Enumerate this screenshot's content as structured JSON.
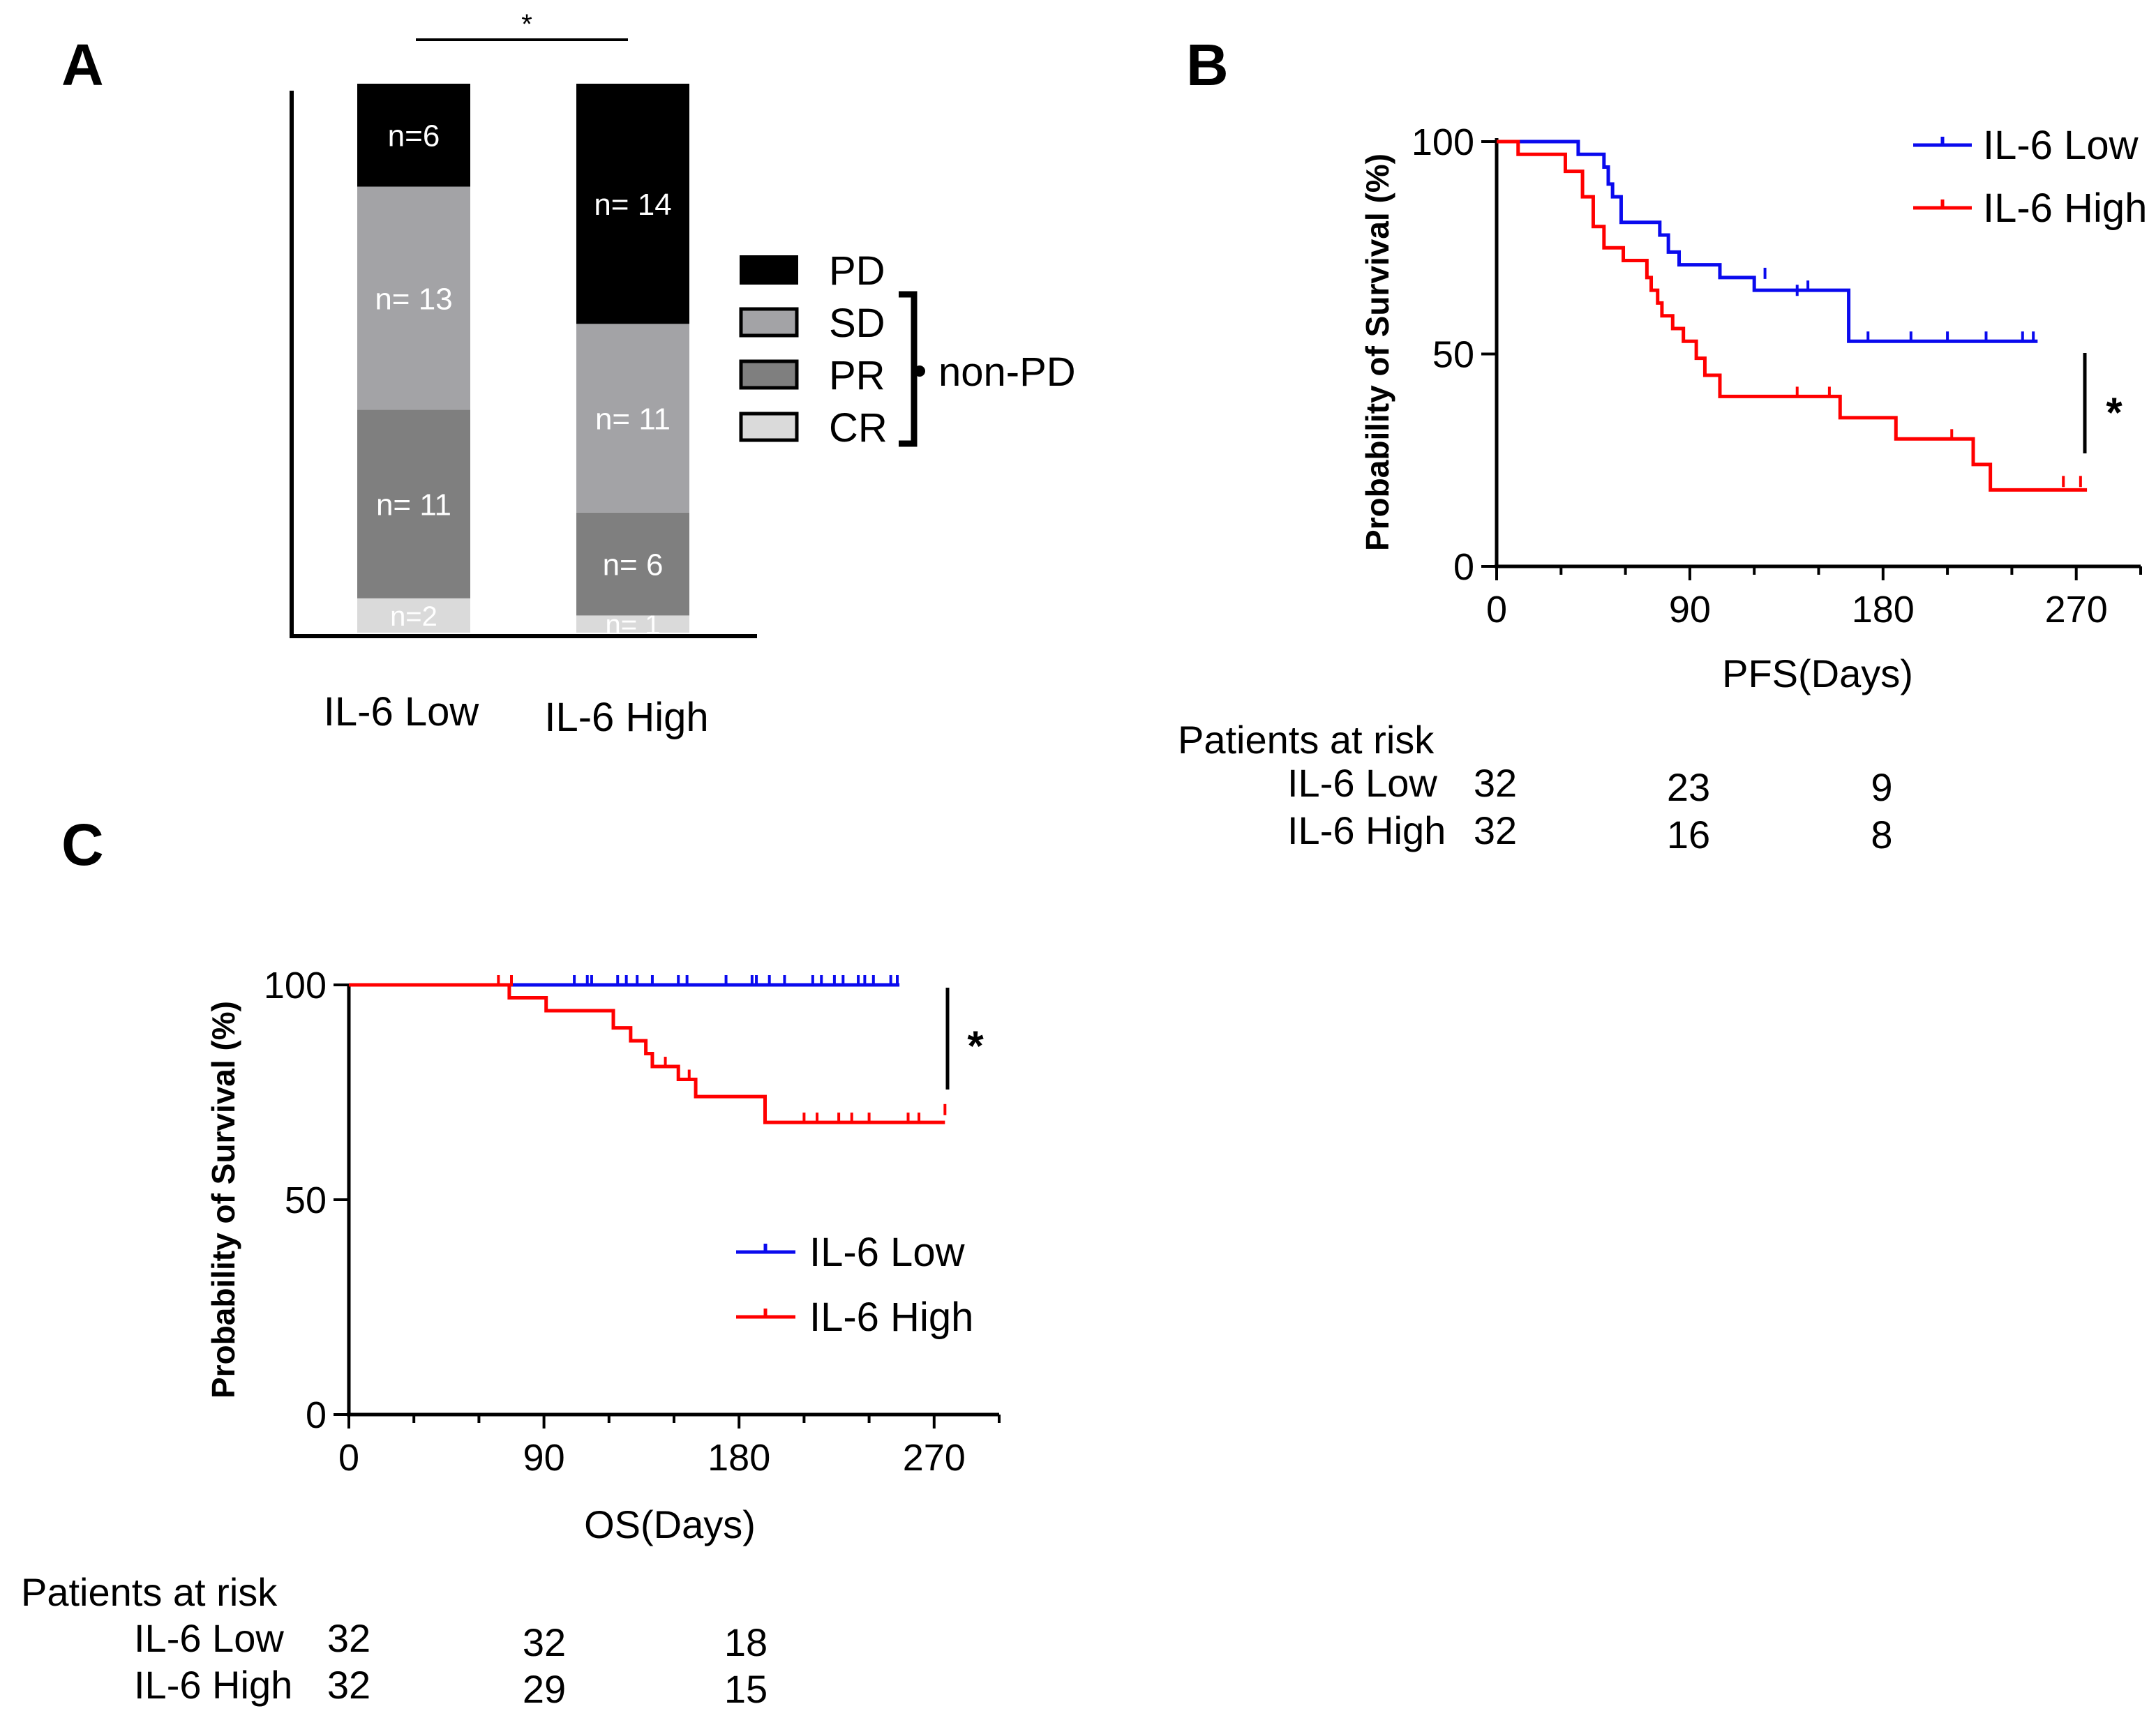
{
  "panels": {
    "a": "A",
    "b": "B",
    "c": "C"
  },
  "chart_data": [
    {
      "id": "A",
      "type": "bar",
      "stacked": true,
      "categories": [
        "IL-6 Low",
        "IL-6 High"
      ],
      "series": [
        {
          "name": "CR",
          "color": "#dadada",
          "values": [
            2,
            1
          ],
          "labels": [
            "n=2",
            "n= 1"
          ]
        },
        {
          "name": "PR",
          "color": "#7f7f7f",
          "values": [
            11,
            6
          ],
          "labels": [
            "n= 11",
            "n= 6"
          ]
        },
        {
          "name": "SD",
          "color": "#a3a3a6",
          "values": [
            13,
            11
          ],
          "labels": [
            "n= 13",
            "n= 11"
          ]
        },
        {
          "name": "PD",
          "color": "#000000",
          "values": [
            6,
            14
          ],
          "labels": [
            "n=6",
            "n= 14"
          ]
        }
      ],
      "ylim": [
        0,
        100
      ],
      "legend": [
        "PD",
        "SD",
        "PR",
        "CR"
      ],
      "legend_group": "non-PD",
      "significance": "*"
    },
    {
      "id": "B",
      "type": "line",
      "ylabel": "Probability of Survival (%)",
      "xlabel": "PFS(Days)",
      "xlim": [
        0,
        300
      ],
      "ylim": [
        0,
        100
      ],
      "xticks": [
        0,
        90,
        180,
        270
      ],
      "yticks": [
        0,
        50,
        100
      ],
      "significance": "*",
      "series": [
        {
          "name": "IL-6 Low",
          "color": "#0a0aee",
          "steps": [
            [
              0,
              100
            ],
            [
              38,
              97
            ],
            [
              50,
              94
            ],
            [
              52,
              90
            ],
            [
              54,
              87
            ],
            [
              58,
              81
            ],
            [
              76,
              78
            ],
            [
              80,
              74
            ],
            [
              85,
              71
            ],
            [
              104,
              68
            ],
            [
              120,
              65
            ],
            [
              164,
              53
            ],
            [
              252,
              53
            ]
          ],
          "censors": [
            [
              125,
              68
            ],
            [
              140,
              64
            ],
            [
              145,
              65
            ],
            [
              173,
              53
            ],
            [
              193,
              53
            ],
            [
              210,
              53
            ],
            [
              228,
              53
            ],
            [
              245,
              53
            ],
            [
              250,
              53
            ]
          ]
        },
        {
          "name": "IL-6 High",
          "color": "#ff0000",
          "steps": [
            [
              0,
              100
            ],
            [
              10,
              97
            ],
            [
              32,
              93
            ],
            [
              40,
              87
            ],
            [
              45,
              80
            ],
            [
              50,
              75
            ],
            [
              59,
              72
            ],
            [
              70,
              68
            ],
            [
              72,
              65
            ],
            [
              75,
              62
            ],
            [
              77,
              59
            ],
            [
              82,
              56
            ],
            [
              87,
              53
            ],
            [
              93,
              49
            ],
            [
              97,
              45
            ],
            [
              104,
              40
            ],
            [
              160,
              35
            ],
            [
              186,
              30
            ],
            [
              222,
              24
            ],
            [
              230,
              18
            ],
            [
              275,
              18
            ]
          ],
          "censors": [
            [
              140,
              40
            ],
            [
              155,
              40
            ],
            [
              212,
              30
            ],
            [
              264,
              19
            ],
            [
              272,
              19
            ]
          ]
        }
      ],
      "legend": [
        "IL-6 Low",
        "IL-6 High"
      ],
      "risk_table": {
        "title": "Patients at risk",
        "rows": [
          {
            "label": "IL-6 Low",
            "values": [
              "32",
              "23",
              "9"
            ]
          },
          {
            "label": "IL-6 High",
            "values": [
              "32",
              "16",
              "8"
            ]
          }
        ]
      }
    },
    {
      "id": "C",
      "type": "line",
      "ylabel": "Probability of Survival (%)",
      "xlabel": "OS(Days)",
      "xlim": [
        0,
        300
      ],
      "ylim": [
        0,
        100
      ],
      "xticks": [
        0,
        90,
        180,
        270
      ],
      "yticks": [
        0,
        50,
        100
      ],
      "significance": "*",
      "series": [
        {
          "name": "IL-6 Low",
          "color": "#0a0aee",
          "steps": [
            [
              0,
              100
            ],
            [
              254,
              100
            ]
          ],
          "censors": [
            [
              104,
              100
            ],
            [
              110,
              100
            ],
            [
              112,
              100
            ],
            [
              124,
              100
            ],
            [
              128,
              100
            ],
            [
              133,
              100
            ],
            [
              140,
              100
            ],
            [
              152,
              100
            ],
            [
              156,
              100
            ],
            [
              174,
              100
            ],
            [
              186,
              100
            ],
            [
              188,
              100
            ],
            [
              194,
              100
            ],
            [
              201,
              100
            ],
            [
              214,
              100
            ],
            [
              218,
              100
            ],
            [
              224,
              100
            ],
            [
              228,
              100
            ],
            [
              235,
              100
            ],
            [
              238,
              100
            ],
            [
              242,
              100
            ],
            [
              250,
              100
            ],
            [
              253,
              100
            ]
          ]
        },
        {
          "name": "IL-6 High",
          "color": "#ff0000",
          "steps": [
            [
              0,
              100
            ],
            [
              73,
              100
            ],
            [
              74,
              97
            ],
            [
              91,
              94
            ],
            [
              122,
              90
            ],
            [
              130,
              87
            ],
            [
              137,
              84
            ],
            [
              140,
              81
            ],
            [
              152,
              78
            ],
            [
              160,
              74
            ],
            [
              192,
              68
            ],
            [
              275,
              68
            ]
          ],
          "censors": [
            [
              69,
              100
            ],
            [
              75,
              100
            ],
            [
              146,
              81
            ],
            [
              157,
              78
            ],
            [
              210,
              68
            ],
            [
              216,
              68
            ],
            [
              226,
              68
            ],
            [
              232,
              68
            ],
            [
              240,
              68
            ],
            [
              258,
              68
            ],
            [
              263,
              68
            ],
            [
              275,
              70
            ]
          ]
        }
      ],
      "legend": [
        "IL-6 Low",
        "IL-6 High"
      ],
      "risk_table": {
        "title": "Patients at risk",
        "rows": [
          {
            "label": "IL-6 Low",
            "values": [
              "32",
              "32",
              "18"
            ]
          },
          {
            "label": "IL-6 High",
            "values": [
              "32",
              "29",
              "15"
            ]
          }
        ]
      }
    }
  ]
}
